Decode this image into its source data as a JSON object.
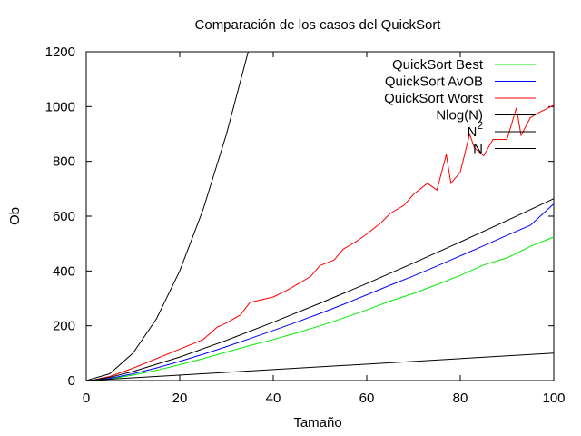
{
  "chart_data": {
    "type": "line",
    "title": "Comparación de los casos del QuickSort",
    "xlabel": "Tamaño",
    "ylabel": "Ob",
    "xlim": [
      0,
      100
    ],
    "ylim": [
      0,
      1200
    ],
    "xticks": [
      0,
      20,
      40,
      60,
      80,
      100
    ],
    "yticks": [
      0,
      200,
      400,
      600,
      800,
      1000,
      1200
    ],
    "grid": false,
    "legend_position": "top-right",
    "series": [
      {
        "name": "QuickSort Best",
        "color": "#00ee00",
        "x": [
          1,
          5,
          10,
          15,
          20,
          25,
          30,
          35,
          40,
          45,
          50,
          55,
          60,
          65,
          70,
          75,
          80,
          85,
          90,
          95,
          100
        ],
        "y": [
          0,
          6,
          20,
          37,
          58,
          80,
          104,
          128,
          150,
          174,
          200,
          228,
          258,
          290,
          318,
          350,
          384,
          422,
          448,
          490,
          524
        ]
      },
      {
        "name": "QuickSort AvOB",
        "color": "#0000ff",
        "x": [
          1,
          5,
          10,
          15,
          20,
          25,
          30,
          35,
          40,
          45,
          50,
          55,
          60,
          65,
          70,
          75,
          80,
          85,
          90,
          95,
          100
        ],
        "y": [
          0,
          8,
          25,
          46,
          70,
          96,
          124,
          153,
          183,
          213,
          245,
          278,
          313,
          348,
          382,
          418,
          455,
          492,
          530,
          567,
          645
        ]
      },
      {
        "name": "QuickSort Worst",
        "color": "#ff0000",
        "x": [
          1,
          5,
          10,
          15,
          20,
          25,
          28,
          30,
          33,
          35,
          40,
          43,
          45,
          48,
          50,
          53,
          55,
          58,
          60,
          63,
          65,
          68,
          70,
          73,
          75,
          77,
          78,
          80,
          82,
          83,
          85,
          87,
          90,
          92,
          93,
          95,
          97,
          100
        ],
        "y": [
          0,
          15,
          45,
          80,
          115,
          150,
          195,
          210,
          240,
          285,
          305,
          330,
          350,
          380,
          420,
          440,
          480,
          510,
          535,
          575,
          610,
          640,
          680,
          720,
          695,
          825,
          720,
          760,
          900,
          850,
          820,
          880,
          880,
          995,
          895,
          960,
          980,
          1005
        ]
      },
      {
        "name": "Nlog(N)",
        "color": "#000000",
        "x": [
          1,
          5,
          10,
          20,
          30,
          40,
          50,
          60,
          70,
          80,
          90,
          100
        ],
        "y": [
          0,
          12,
          33,
          86,
          147,
          213,
          282,
          354,
          429,
          506,
          584,
          664
        ]
      },
      {
        "name": "N^2",
        "color": "#000000",
        "x": [
          0,
          5,
          10,
          15,
          20,
          25,
          30,
          34.64
        ],
        "y": [
          0,
          25,
          100,
          225,
          400,
          625,
          900,
          1200
        ]
      },
      {
        "name": "N",
        "color": "#000000",
        "x": [
          0,
          100
        ],
        "y": [
          0,
          100
        ]
      }
    ]
  },
  "legend": {
    "labels": [
      "QuickSort Best",
      "QuickSort AvOB",
      "QuickSort Worst",
      "Nlog(N)",
      "N",
      "N"
    ],
    "superscripts": [
      "",
      "",
      "",
      "",
      "2",
      ""
    ]
  }
}
